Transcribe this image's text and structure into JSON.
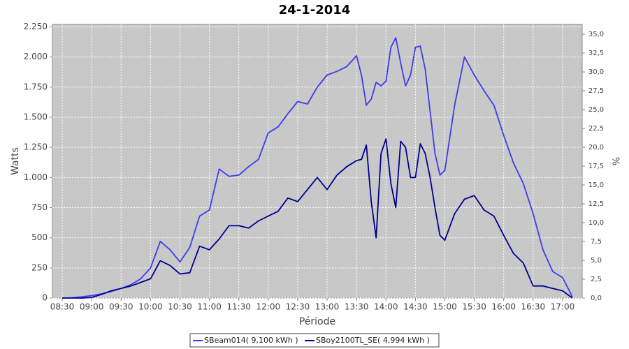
{
  "chart_data": {
    "type": "line",
    "title": "24-1-2014",
    "x_label": "Période",
    "y_label": "Watts",
    "y2_label": "%",
    "x": [
      "08:30",
      "08:40",
      "08:50",
      "09:00",
      "09:10",
      "09:20",
      "09:30",
      "09:40",
      "09:50",
      "10:00",
      "10:10",
      "10:20",
      "10:30",
      "10:40",
      "10:50",
      "11:00",
      "11:10",
      "11:20",
      "11:30",
      "11:40",
      "11:50",
      "12:00",
      "12:10",
      "12:20",
      "12:30",
      "12:40",
      "12:50",
      "13:00",
      "13:10",
      "13:20",
      "13:30",
      "13:35",
      "13:40",
      "13:45",
      "13:50",
      "13:55",
      "14:00",
      "14:05",
      "14:10",
      "14:15",
      "14:20",
      "14:25",
      "14:30",
      "14:35",
      "14:40",
      "14:45",
      "14:50",
      "14:55",
      "15:00",
      "15:10",
      "15:20",
      "15:30",
      "15:40",
      "15:50",
      "16:00",
      "16:10",
      "16:20",
      "16:30",
      "16:40",
      "16:50",
      "17:00",
      "17:10"
    ],
    "series": [
      {
        "name": "SBeam014( 9,100 kWh )",
        "color": "#3c3cf0",
        "values": [
          0,
          3,
          10,
          20,
          35,
          55,
          80,
          110,
          160,
          250,
          470,
          400,
          300,
          420,
          680,
          730,
          1070,
          1010,
          1020,
          1090,
          1150,
          1370,
          1420,
          1530,
          1630,
          1610,
          1750,
          1850,
          1880,
          1920,
          2010,
          1850,
          1600,
          1650,
          1790,
          1760,
          1800,
          2080,
          2160,
          1950,
          1760,
          1850,
          2080,
          2090,
          1900,
          1550,
          1200,
          1020,
          1060,
          1600,
          2000,
          1850,
          1720,
          1600,
          1350,
          1120,
          950,
          700,
          400,
          220,
          170,
          10
        ]
      },
      {
        "name": "SBoy2100TL_SE( 4,994 kWh )",
        "color": "#000090",
        "values": [
          0,
          0,
          0,
          5,
          30,
          60,
          80,
          100,
          130,
          160,
          310,
          270,
          200,
          210,
          430,
          400,
          490,
          600,
          600,
          580,
          640,
          680,
          720,
          830,
          800,
          900,
          1000,
          900,
          1020,
          1090,
          1140,
          1150,
          1270,
          800,
          500,
          1200,
          1320,
          950,
          750,
          1300,
          1250,
          1000,
          1000,
          1280,
          1200,
          1000,
          750,
          520,
          480,
          700,
          820,
          850,
          730,
          680,
          520,
          370,
          290,
          100,
          100,
          80,
          60,
          0
        ]
      }
    ],
    "xlim": [
      "08:20",
      "17:20"
    ],
    "xticks": [
      "08:30",
      "09:00",
      "09:30",
      "10:00",
      "10:30",
      "11:00",
      "11:30",
      "12:00",
      "12:30",
      "13:00",
      "13:30",
      "14:00",
      "14:30",
      "15:00",
      "15:30",
      "16:00",
      "16:30",
      "17:00"
    ],
    "ylim": [
      0,
      2270
    ],
    "yticks": [
      0,
      {
        "value": 250,
        "label": "250"
      },
      {
        "value": 500,
        "label": "500"
      },
      {
        "value": 750,
        "label": "750"
      },
      {
        "value": 1000,
        "label": "1.000"
      },
      {
        "value": 1250,
        "label": "1.250"
      },
      {
        "value": 1500,
        "label": "1.500"
      },
      {
        "value": 1750,
        "label": "1.750"
      },
      {
        "value": 2000,
        "label": "2.000"
      },
      {
        "value": 2250,
        "label": "2.250"
      }
    ],
    "y2lim": [
      0,
      36.3
    ],
    "y2ticks": [
      {
        "value": 0,
        "label": "0,0"
      },
      {
        "value": 2.5,
        "label": "2,5"
      },
      {
        "value": 5,
        "label": "5,0"
      },
      {
        "value": 7.5,
        "label": "7,5"
      },
      {
        "value": 10,
        "label": "10,0"
      },
      {
        "value": 12.5,
        "label": "12,5"
      },
      {
        "value": 15,
        "label": "15,0"
      },
      {
        "value": 17.5,
        "label": "17,5"
      },
      {
        "value": 20,
        "label": "20,0"
      },
      {
        "value": 22.5,
        "label": "22,5"
      },
      {
        "value": 25,
        "label": "25,0"
      },
      {
        "value": 27.5,
        "label": "27,5"
      },
      {
        "value": 30,
        "label": "30,0"
      },
      {
        "value": 32.5,
        "label": "32,5"
      },
      {
        "value": 35,
        "label": "35,0"
      }
    ],
    "grid": true,
    "legend": "bottom"
  }
}
